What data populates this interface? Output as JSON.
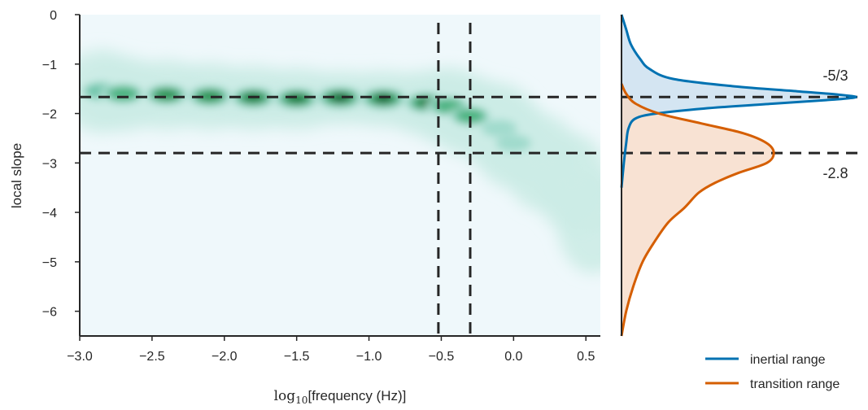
{
  "chart_data": [
    {
      "type": "heatmap",
      "xlabel_prefix": "log",
      "xlabel_sub": "10",
      "xlabel_main": "[frequency (Hz)]",
      "ylabel": "local slope",
      "xlim": [
        -3.0,
        0.6
      ],
      "ylim": [
        -6.5,
        0
      ],
      "xticks": [
        "−3.0",
        "−2.5",
        "−2.0",
        "−1.5",
        "−1.0",
        "−0.5",
        "0.0",
        "0.5"
      ],
      "xtick_values": [
        -3.0,
        -2.5,
        -2.0,
        -1.5,
        -1.0,
        -0.5,
        0.0,
        0.5
      ],
      "yticks": [
        "0",
        "−1",
        "−2",
        "−3",
        "−4",
        "−5",
        "−6"
      ],
      "ytick_values": [
        0,
        -1,
        -2,
        -3,
        -4,
        -5,
        -6
      ],
      "grid": false,
      "background_color": "#eff8fb",
      "colormap": [
        "#e5f5f9",
        "#ccece6",
        "#99d8c9",
        "#66c2a4",
        "#41ae76",
        "#238b45",
        "#006d2c",
        "#00441b"
      ],
      "density_ridge": [
        {
          "x": -2.85,
          "y": -1.55,
          "d": 0.45
        },
        {
          "x": -2.7,
          "y": -1.6,
          "d": 0.6
        },
        {
          "x": -2.4,
          "y": -1.62,
          "d": 0.7
        },
        {
          "x": -2.1,
          "y": -1.65,
          "d": 0.75
        },
        {
          "x": -1.8,
          "y": -1.68,
          "d": 0.8
        },
        {
          "x": -1.5,
          "y": -1.7,
          "d": 0.85
        },
        {
          "x": -1.2,
          "y": -1.68,
          "d": 1.0
        },
        {
          "x": -0.9,
          "y": -1.7,
          "d": 0.95
        },
        {
          "x": -0.6,
          "y": -1.78,
          "d": 0.8
        },
        {
          "x": -0.45,
          "y": -1.85,
          "d": 0.55
        },
        {
          "x": -0.3,
          "y": -2.05,
          "d": 0.5
        },
        {
          "x": -0.1,
          "y": -2.3,
          "d": 0.3
        },
        {
          "x": 0.0,
          "y": -2.6,
          "d": 0.28
        },
        {
          "x": 0.2,
          "y": -3.0,
          "d": 0.2
        },
        {
          "x": 0.4,
          "y": -3.4,
          "d": 0.15
        },
        {
          "x": 0.55,
          "y": -4.2,
          "d": 0.1
        }
      ],
      "hlines": [
        {
          "y": -1.667,
          "label": "-5/3"
        },
        {
          "y": -2.8,
          "label": "-2.8"
        }
      ],
      "vlines": [
        -0.52,
        -0.3
      ]
    },
    {
      "type": "area",
      "orientation": "horizontal",
      "ylim": [
        -6.5,
        0
      ],
      "series": [
        {
          "name": "inertial range",
          "color": "#0072b2",
          "fill": "#c5dced",
          "y": [
            0,
            -0.3,
            -0.6,
            -0.9,
            -1.1,
            -1.3,
            -1.45,
            -1.55,
            -1.62,
            -1.67,
            -1.72,
            -1.8,
            -1.9,
            -2.0,
            -2.1,
            -2.3,
            -2.6,
            -3.0,
            -3.5
          ],
          "density": [
            0.0,
            0.02,
            0.04,
            0.08,
            0.12,
            0.22,
            0.48,
            0.75,
            0.93,
            1.0,
            0.9,
            0.65,
            0.35,
            0.15,
            0.06,
            0.03,
            0.02,
            0.01,
            0.0
          ]
        },
        {
          "name": "transition range",
          "color": "#d55e00",
          "fill": "#f5d8c4",
          "y": [
            -1.4,
            -1.6,
            -1.8,
            -2.0,
            -2.2,
            -2.4,
            -2.6,
            -2.8,
            -3.0,
            -3.2,
            -3.4,
            -3.6,
            -3.9,
            -4.2,
            -4.6,
            -5.0,
            -5.5,
            -6.0,
            -6.5
          ],
          "density": [
            0.0,
            0.02,
            0.06,
            0.16,
            0.34,
            0.52,
            0.62,
            0.65,
            0.62,
            0.5,
            0.4,
            0.33,
            0.27,
            0.2,
            0.14,
            0.09,
            0.05,
            0.02,
            0.0
          ]
        }
      ],
      "legend_position": "bottom-right"
    }
  ],
  "legend": {
    "items": [
      {
        "label": "inertial range",
        "color": "#0072b2"
      },
      {
        "label": "transition range",
        "color": "#d55e00"
      }
    ]
  },
  "annotations": {
    "slope_a": "-5/3",
    "slope_b": "-2.8"
  }
}
